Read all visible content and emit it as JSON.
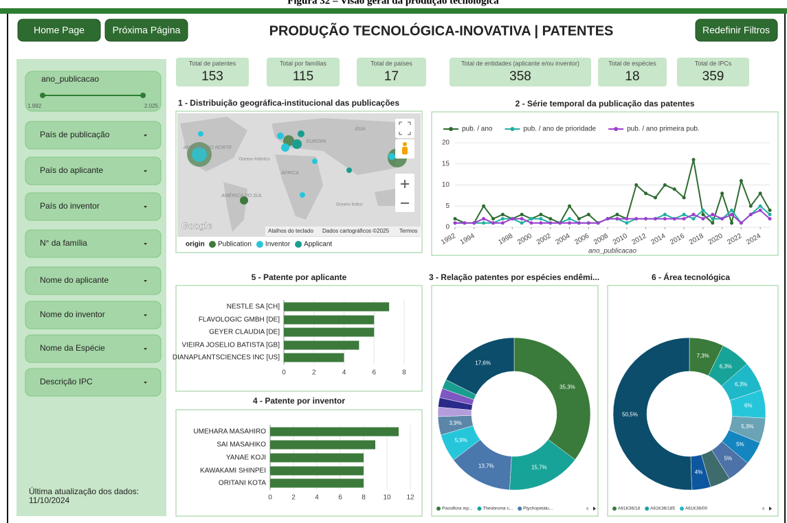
{
  "caption": "Figura 32 – Visão geral da produção tecnológica",
  "header": {
    "home": "Home Page",
    "next": "Próxima Página",
    "title": "PRODUÇÃO TECNOLÓGICA-INOVATIVA | PATENTES",
    "reset": "Redefinir Filtros"
  },
  "sidebar": {
    "slider": {
      "label": "ano_publicacao",
      "min_label": "1.992",
      "max_label": "2.025"
    },
    "filters": [
      "País de publicação",
      "País do aplicante",
      "País do inventor",
      "N° da família",
      "Nome do aplicante",
      "Nome do inventor",
      "Nome da Espécie",
      "Descrição IPC"
    ],
    "update": [
      "Última atualização dos dados:",
      "11/10/2024"
    ]
  },
  "kpis": [
    {
      "label": "Total de patentes",
      "value": 153
    },
    {
      "label": "Total por famílias",
      "value": 115
    },
    {
      "label": "Total de países",
      "value": 17
    },
    {
      "label": "Total de entidades (aplicante e/ou inventor)",
      "value": 358
    },
    {
      "label": "Total de espécies",
      "value": 18
    },
    {
      "label": "Total de IPCs",
      "value": 359
    }
  ],
  "map": {
    "title": "1 - Distribuição geográfica-institucional das publicações",
    "labels": [
      "ÁSIA",
      "EUROPA",
      "ÁFRICA",
      "AMÉRICA DO NORTE",
      "AMÉRICA DO SUL",
      "Oceano Atlântico",
      "Oceano Índico"
    ],
    "google": "Google",
    "attribution": [
      "Atalhos do teclado",
      "Dados cartográficos ©2025",
      "Termos"
    ],
    "legend_title": "origin",
    "legend": [
      {
        "name": "Publication",
        "color": "#3d7a3d"
      },
      {
        "name": "Inventor",
        "color": "#26c6da"
      },
      {
        "name": "Applicant",
        "color": "#1a9e8f"
      }
    ]
  },
  "line_chart": {
    "type": "line",
    "title": "2 - Série temporal da publicação das patentes",
    "x_label": "ano_publicacao",
    "x": [
      1992,
      1993,
      1994,
      1995,
      1996,
      1997,
      1998,
      1999,
      2000,
      2001,
      2002,
      2003,
      2004,
      2005,
      2006,
      2007,
      2008,
      2009,
      2010,
      2011,
      2012,
      2013,
      2014,
      2015,
      2016,
      2017,
      2018,
      2019,
      2020,
      2021,
      2022,
      2023,
      2024,
      2025
    ],
    "xlim": [
      1992,
      2025
    ],
    "xticks": [
      1992,
      1994,
      1998,
      2000,
      2002,
      2004,
      2006,
      2008,
      2010,
      2012,
      2014,
      2016,
      2018,
      2020,
      2022,
      2024
    ],
    "ylim": [
      0,
      20
    ],
    "yticks": [
      0,
      5,
      10,
      15,
      20
    ],
    "grid": true,
    "series": [
      {
        "name": "pub. / ano",
        "color": "#2e6b30",
        "values": [
          2,
          1,
          1,
          5,
          2,
          3,
          2,
          3,
          2,
          3,
          2,
          1,
          5,
          2,
          3,
          1,
          2,
          3,
          2,
          10,
          8,
          7,
          10,
          9,
          7,
          16,
          3,
          1,
          8,
          1,
          11,
          5,
          8,
          4
        ]
      },
      {
        "name": "pub. / ano de prioridade",
        "color": "#1fb0a0",
        "values": [
          1,
          1,
          1,
          1,
          1,
          2,
          2,
          1,
          2,
          2,
          1,
          1,
          2,
          1,
          1,
          1,
          2,
          2,
          1,
          2,
          2,
          2,
          3,
          2,
          3,
          2,
          4,
          2,
          2,
          4,
          1,
          3,
          5,
          3
        ]
      },
      {
        "name": "pub. / ano primeira pub.",
        "color": "#9c3fd0",
        "values": [
          1,
          1,
          1,
          2,
          1,
          1,
          2,
          2,
          1,
          1,
          1,
          1,
          1,
          1,
          1,
          1,
          2,
          2,
          2,
          2,
          2,
          2,
          2,
          2,
          2,
          3,
          2,
          3,
          2,
          3,
          1,
          3,
          4,
          2
        ]
      }
    ]
  },
  "bar_applicant": {
    "type": "bar",
    "orientation": "horizontal",
    "title": "5 - Patente por aplicante",
    "color": "#3b7a3b",
    "categories": [
      "NESTLE SA [CH]",
      "FLAVOLOGIC GMBH [DE]",
      "GEYER CLAUDIA [DE]",
      "VIEIRA JOSELIO BATISTA [GB]",
      "DIANAPLANTSCIENCES INC [US]"
    ],
    "values": [
      7,
      6,
      6,
      5,
      4
    ],
    "xlim": [
      0,
      8
    ],
    "xticks": [
      0,
      2,
      4,
      6,
      8
    ],
    "grid": true
  },
  "bar_inventor": {
    "type": "bar",
    "orientation": "horizontal",
    "title": "4 - Patente por inventor",
    "color": "#3b7a3b",
    "categories": [
      "UMEHARA MASAHIRO",
      "SAI MASAHIKO",
      "YANAE KOJI",
      "KAWAKAMI SHINPEI",
      "ORITANI KOTA"
    ],
    "values": [
      11,
      9,
      8,
      8,
      8
    ],
    "xlim": [
      0,
      12
    ],
    "xticks": [
      0,
      2,
      4,
      6,
      8,
      10,
      12
    ],
    "grid": true
  },
  "donut_species": {
    "type": "pie",
    "title": "3 - Relação patentes por espécies endêmi...",
    "categories": [
      "Passiflora inp...",
      "Theobroma c...",
      "Ptychopetalu...",
      null,
      null,
      null,
      null,
      null,
      null,
      null
    ],
    "values": [
      35.3,
      15.7,
      13.7,
      5.9,
      3.9,
      2,
      2,
      2,
      2,
      17.6
    ],
    "value_labels": [
      "35,3%",
      "15,7%",
      "13,7%",
      "5,9%",
      "3,9%",
      null,
      null,
      null,
      null,
      "17,6%"
    ],
    "colors": [
      "#3a7a3a",
      "#17a398",
      "#4a78ad",
      "#26c6da",
      "#5b86a8",
      "#b39ddb",
      "#2a2a8a",
      "#7e57c2",
      "#1a9e8f",
      "#0b4d6b"
    ]
  },
  "donut_ipc": {
    "type": "pie",
    "title": "6 - Área tecnológica",
    "categories": [
      "A61K36/18",
      "A61K36/185",
      "A61K36/00",
      null,
      null,
      null,
      null,
      null,
      null,
      null
    ],
    "values": [
      7.3,
      6.3,
      6.3,
      6,
      5.3,
      5,
      5,
      4.3,
      4,
      50.5
    ],
    "value_labels": [
      "7,3%",
      "6,3%",
      "6,3%",
      "6%",
      "5,3%",
      "5%",
      "5%",
      null,
      "4%",
      "50,5%"
    ],
    "colors": [
      "#3a7a3a",
      "#17a398",
      "#1fb8c9",
      "#26c6da",
      "#6aa3b5",
      "#1585c0",
      "#4d72a8",
      "#3e6b6b",
      "#0d56a0",
      "#0b4d6b"
    ]
  }
}
